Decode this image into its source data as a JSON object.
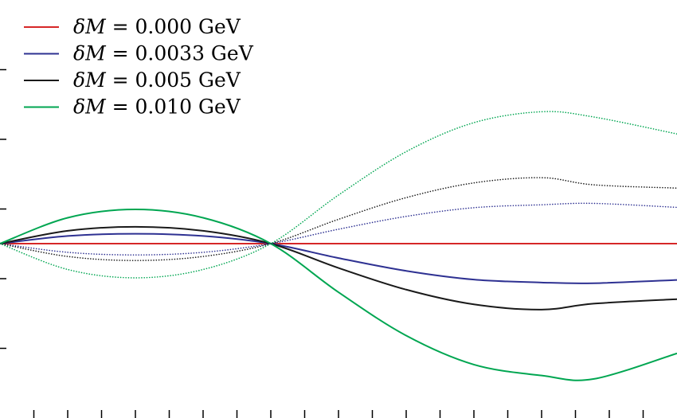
{
  "chart_data": {
    "type": "line",
    "title": "",
    "xlabel": "",
    "ylabel": "",
    "xlim": [
      0,
      850
    ],
    "ylim": [
      -1.0,
      1.0
    ],
    "grid": false,
    "legend_position": "top-left",
    "x_ticks_count": 20,
    "y_ticks_count": 5,
    "x": [
      0,
      85,
      170,
      255,
      340,
      425,
      510,
      595,
      680,
      745,
      850
    ],
    "series": [
      {
        "name_prefix": "δ",
        "name_var": "M",
        "name_rest": " = 0.000 GeV",
        "color": "#d62728",
        "style": "solid",
        "values": [
          0,
          0,
          0,
          0,
          0,
          0,
          0,
          0,
          0,
          0,
          0
        ]
      },
      {
        "name_prefix": "δ",
        "name_var": "M",
        "name_rest": " = 0.0033 GeV",
        "color": "#2e3192",
        "style": "solid",
        "values": [
          0,
          0.044,
          0.057,
          0.044,
          0,
          -0.083,
          -0.157,
          -0.207,
          -0.224,
          -0.228,
          -0.209
        ]
      },
      {
        "name_prefix": "δ",
        "name_var": "M",
        "name_rest": " = 0.005 GeV",
        "color": "#1a1a1a",
        "style": "solid",
        "values": [
          0,
          0.074,
          0.097,
          0.074,
          0,
          -0.14,
          -0.265,
          -0.35,
          -0.38,
          -0.346,
          -0.32
        ]
      },
      {
        "name_prefix": "δ",
        "name_var": "M",
        "name_rest": " = 0.010 GeV",
        "color": "#00a651",
        "style": "solid",
        "values": [
          0,
          0.149,
          0.197,
          0.149,
          0,
          -0.28,
          -0.53,
          -0.697,
          -0.76,
          -0.78,
          -0.632
        ]
      },
      {
        "color": "#2e3192",
        "style": "dotted",
        "values": [
          0,
          -0.05,
          -0.065,
          -0.05,
          0,
          0.083,
          0.157,
          0.207,
          0.224,
          0.232,
          0.209
        ]
      },
      {
        "color": "#1a1a1a",
        "style": "dotted",
        "values": [
          0,
          -0.074,
          -0.097,
          -0.074,
          0,
          0.14,
          0.265,
          0.35,
          0.38,
          0.339,
          0.32
        ]
      },
      {
        "color": "#00a651",
        "style": "dotted",
        "values": [
          0,
          -0.149,
          -0.197,
          -0.149,
          0,
          0.28,
          0.53,
          0.697,
          0.76,
          0.73,
          0.632
        ]
      }
    ]
  }
}
